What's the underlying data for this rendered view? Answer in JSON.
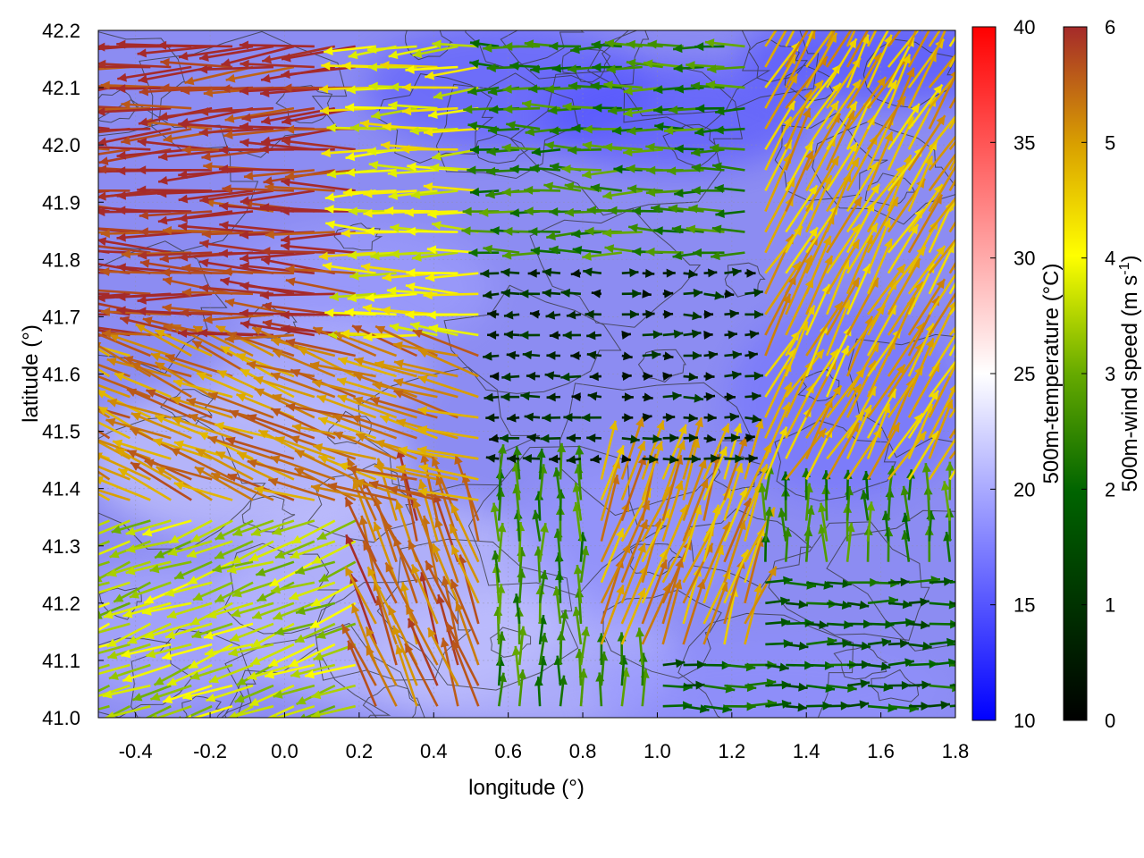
{
  "chart_data": {
    "type": "quiver-heatmap",
    "xlabel": "longitude (°)",
    "ylabel": "latitude (°)",
    "xlim": [
      -0.5,
      1.8
    ],
    "ylim": [
      41.0,
      42.2
    ],
    "x_ticks": [
      "-0.4",
      "-0.2",
      "0.0",
      "0.2",
      "0.4",
      "0.6",
      "0.8",
      "1.0",
      "1.2",
      "1.4",
      "1.6",
      "1.8"
    ],
    "y_ticks": [
      "41.0",
      "41.1",
      "41.2",
      "41.3",
      "41.4",
      "41.5",
      "41.6",
      "41.7",
      "41.8",
      "41.9",
      "42.0",
      "42.1",
      "42.2"
    ],
    "grid": true,
    "colorbars": [
      {
        "label": "500m-temperature (°C)",
        "range": [
          10,
          40
        ],
        "ticks": [
          "10",
          "15",
          "20",
          "25",
          "30",
          "35",
          "40"
        ],
        "colors": [
          "#0000ff",
          "#ffffff",
          "#ff0000"
        ]
      },
      {
        "label_prefix": "500m-wind speed (m s",
        "label_exponent": "-1",
        "label_suffix": ")",
        "range": [
          0,
          6
        ],
        "ticks": [
          "0",
          "1",
          "2",
          "3",
          "4",
          "5",
          "6"
        ],
        "colors": [
          "#000000",
          "#006400",
          "#66aa00",
          "#ffff00",
          "#d9a000",
          "#a52a2a"
        ]
      }
    ],
    "wind_field_zones": [
      {
        "region": "north-west",
        "direction_deg": 170,
        "speed": 6.0
      },
      {
        "region": "west-central",
        "direction_deg": 160,
        "speed": 5.5
      },
      {
        "region": "south-central",
        "direction_deg": 110,
        "speed": 5.0
      },
      {
        "region": "north-central",
        "direction_deg": 180,
        "speed": 2.5
      },
      {
        "region": "center",
        "direction_deg": 0,
        "speed": 0.5
      },
      {
        "region": "east",
        "direction_deg": 60,
        "speed": 5.0
      },
      {
        "region": "south-east",
        "direction_deg": 0,
        "speed": 2.0
      }
    ],
    "temperature_range_shown": [
      13,
      23
    ]
  }
}
